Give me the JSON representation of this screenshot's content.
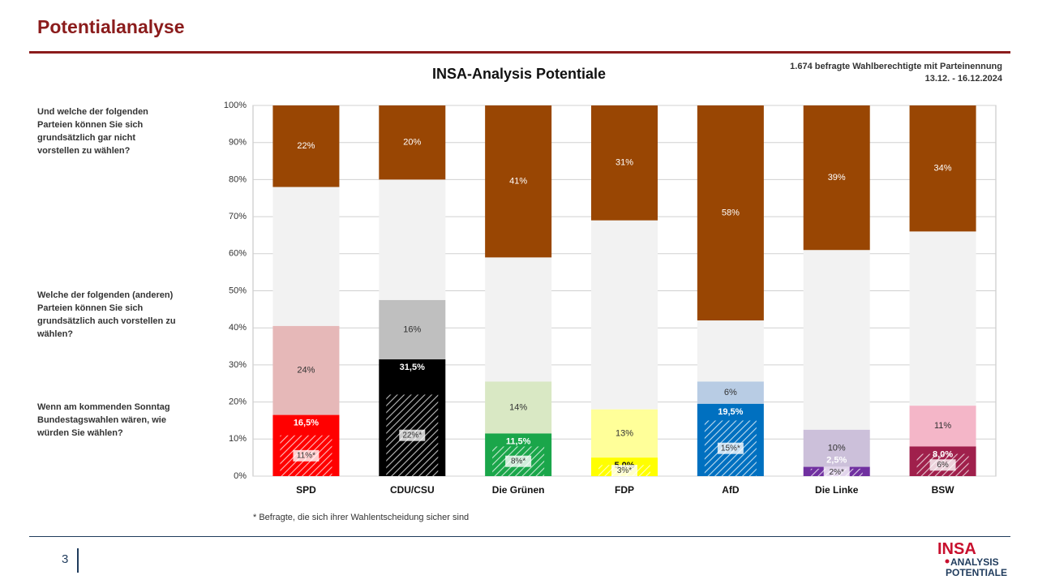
{
  "header": {
    "title": "Potentialanalyse"
  },
  "sample": {
    "line1": "1.674 befragte Wahlberechtigte mit Parteinennung",
    "line2": "13.12. - 16.12.2024"
  },
  "questions": {
    "q_never": "Und welche der folgenden Parteien können Sie sich grundsätzlich gar nicht vorstellen zu wählen?",
    "q_also": "Welche der folgenden (anderen) Parteien können Sie sich grundsätzlich auch vorstellen zu wählen?",
    "q_vote": "Wenn am kommenden Sonntag Bundestagswahlen wären, wie würden Sie wählen?"
  },
  "footnote": "* Befragte, die sich ihrer Wahlentscheidung sicher sind",
  "page_number": "3",
  "logo": {
    "line1": "INSA",
    "line2": "ANALYSIS",
    "line3": "POTENTIALE",
    "accent": "#c8102e",
    "navy": "#1f3b5c"
  },
  "chart_data": {
    "type": "bar",
    "title": "INSA-Analysis Potentiale",
    "ylim": [
      0,
      100
    ],
    "yticks": [
      "0%",
      "10%",
      "20%",
      "30%",
      "40%",
      "50%",
      "60%",
      "70%",
      "80%",
      "90%",
      "100%"
    ],
    "grid": true,
    "categories": [
      "SPD",
      "CDU/CSU",
      "Die Grünen",
      "FDP",
      "AfD",
      "Die Linke",
      "BSW"
    ],
    "never_color": "#994603",
    "remainder_color": "#f2f2f2",
    "parties": [
      {
        "name": "SPD",
        "vote": 16.5,
        "vote_label": "16,5%",
        "sure": 11,
        "sure_label": "11%*",
        "potential": 24,
        "potential_label": "24%",
        "never": 22,
        "never_label": "22%",
        "color": "#ff0000",
        "potential_color": "#e6b8b8",
        "vote_text_color": "#ffffff",
        "potential_text_color": "#333333"
      },
      {
        "name": "CDU/CSU",
        "vote": 31.5,
        "vote_label": "31,5%",
        "sure": 22,
        "sure_label": "22%*",
        "potential": 16,
        "potential_label": "16%",
        "never": 20,
        "never_label": "20%",
        "color": "#000000",
        "potential_color": "#bfbfbf",
        "vote_text_color": "#ffffff",
        "potential_text_color": "#333333"
      },
      {
        "name": "Die Grünen",
        "vote": 11.5,
        "vote_label": "11,5%",
        "sure": 8,
        "sure_label": "8%*",
        "potential": 14,
        "potential_label": "14%",
        "never": 41,
        "never_label": "41%",
        "color": "#1aa64a",
        "potential_color": "#d9e8c4",
        "vote_text_color": "#ffffff",
        "potential_text_color": "#333333"
      },
      {
        "name": "FDP",
        "vote": 5.0,
        "vote_label": "5,0%",
        "sure": 3,
        "sure_label": "3%*",
        "potential": 13,
        "potential_label": "13%",
        "never": 31,
        "never_label": "31%",
        "color": "#ffff00",
        "potential_color": "#ffff99",
        "vote_text_color": "#111111",
        "potential_text_color": "#333333"
      },
      {
        "name": "AfD",
        "vote": 19.5,
        "vote_label": "19,5%",
        "sure": 15,
        "sure_label": "15%*",
        "potential": 6,
        "potential_label": "6%",
        "never": 58,
        "never_label": "58%",
        "color": "#0070c0",
        "potential_color": "#b8cce4",
        "vote_text_color": "#ffffff",
        "potential_text_color": "#333333"
      },
      {
        "name": "Die Linke",
        "vote": 2.5,
        "vote_label": "2,5%",
        "sure": 2,
        "sure_label": "2%*",
        "potential": 10,
        "potential_label": "10%",
        "never": 39,
        "never_label": "39%",
        "color": "#7030a0",
        "potential_color": "#ccc0da",
        "vote_text_color": "#ffffff",
        "potential_text_color": "#333333"
      },
      {
        "name": "BSW",
        "vote": 8.0,
        "vote_label": "8,0%",
        "sure": 6,
        "sure_label": "6%",
        "potential": 11,
        "potential_label": "11%",
        "never": 34,
        "never_label": "34%",
        "color": "#a0204c",
        "potential_color": "#f4b6c8",
        "vote_text_color": "#ffffff",
        "potential_text_color": "#333333"
      }
    ]
  }
}
